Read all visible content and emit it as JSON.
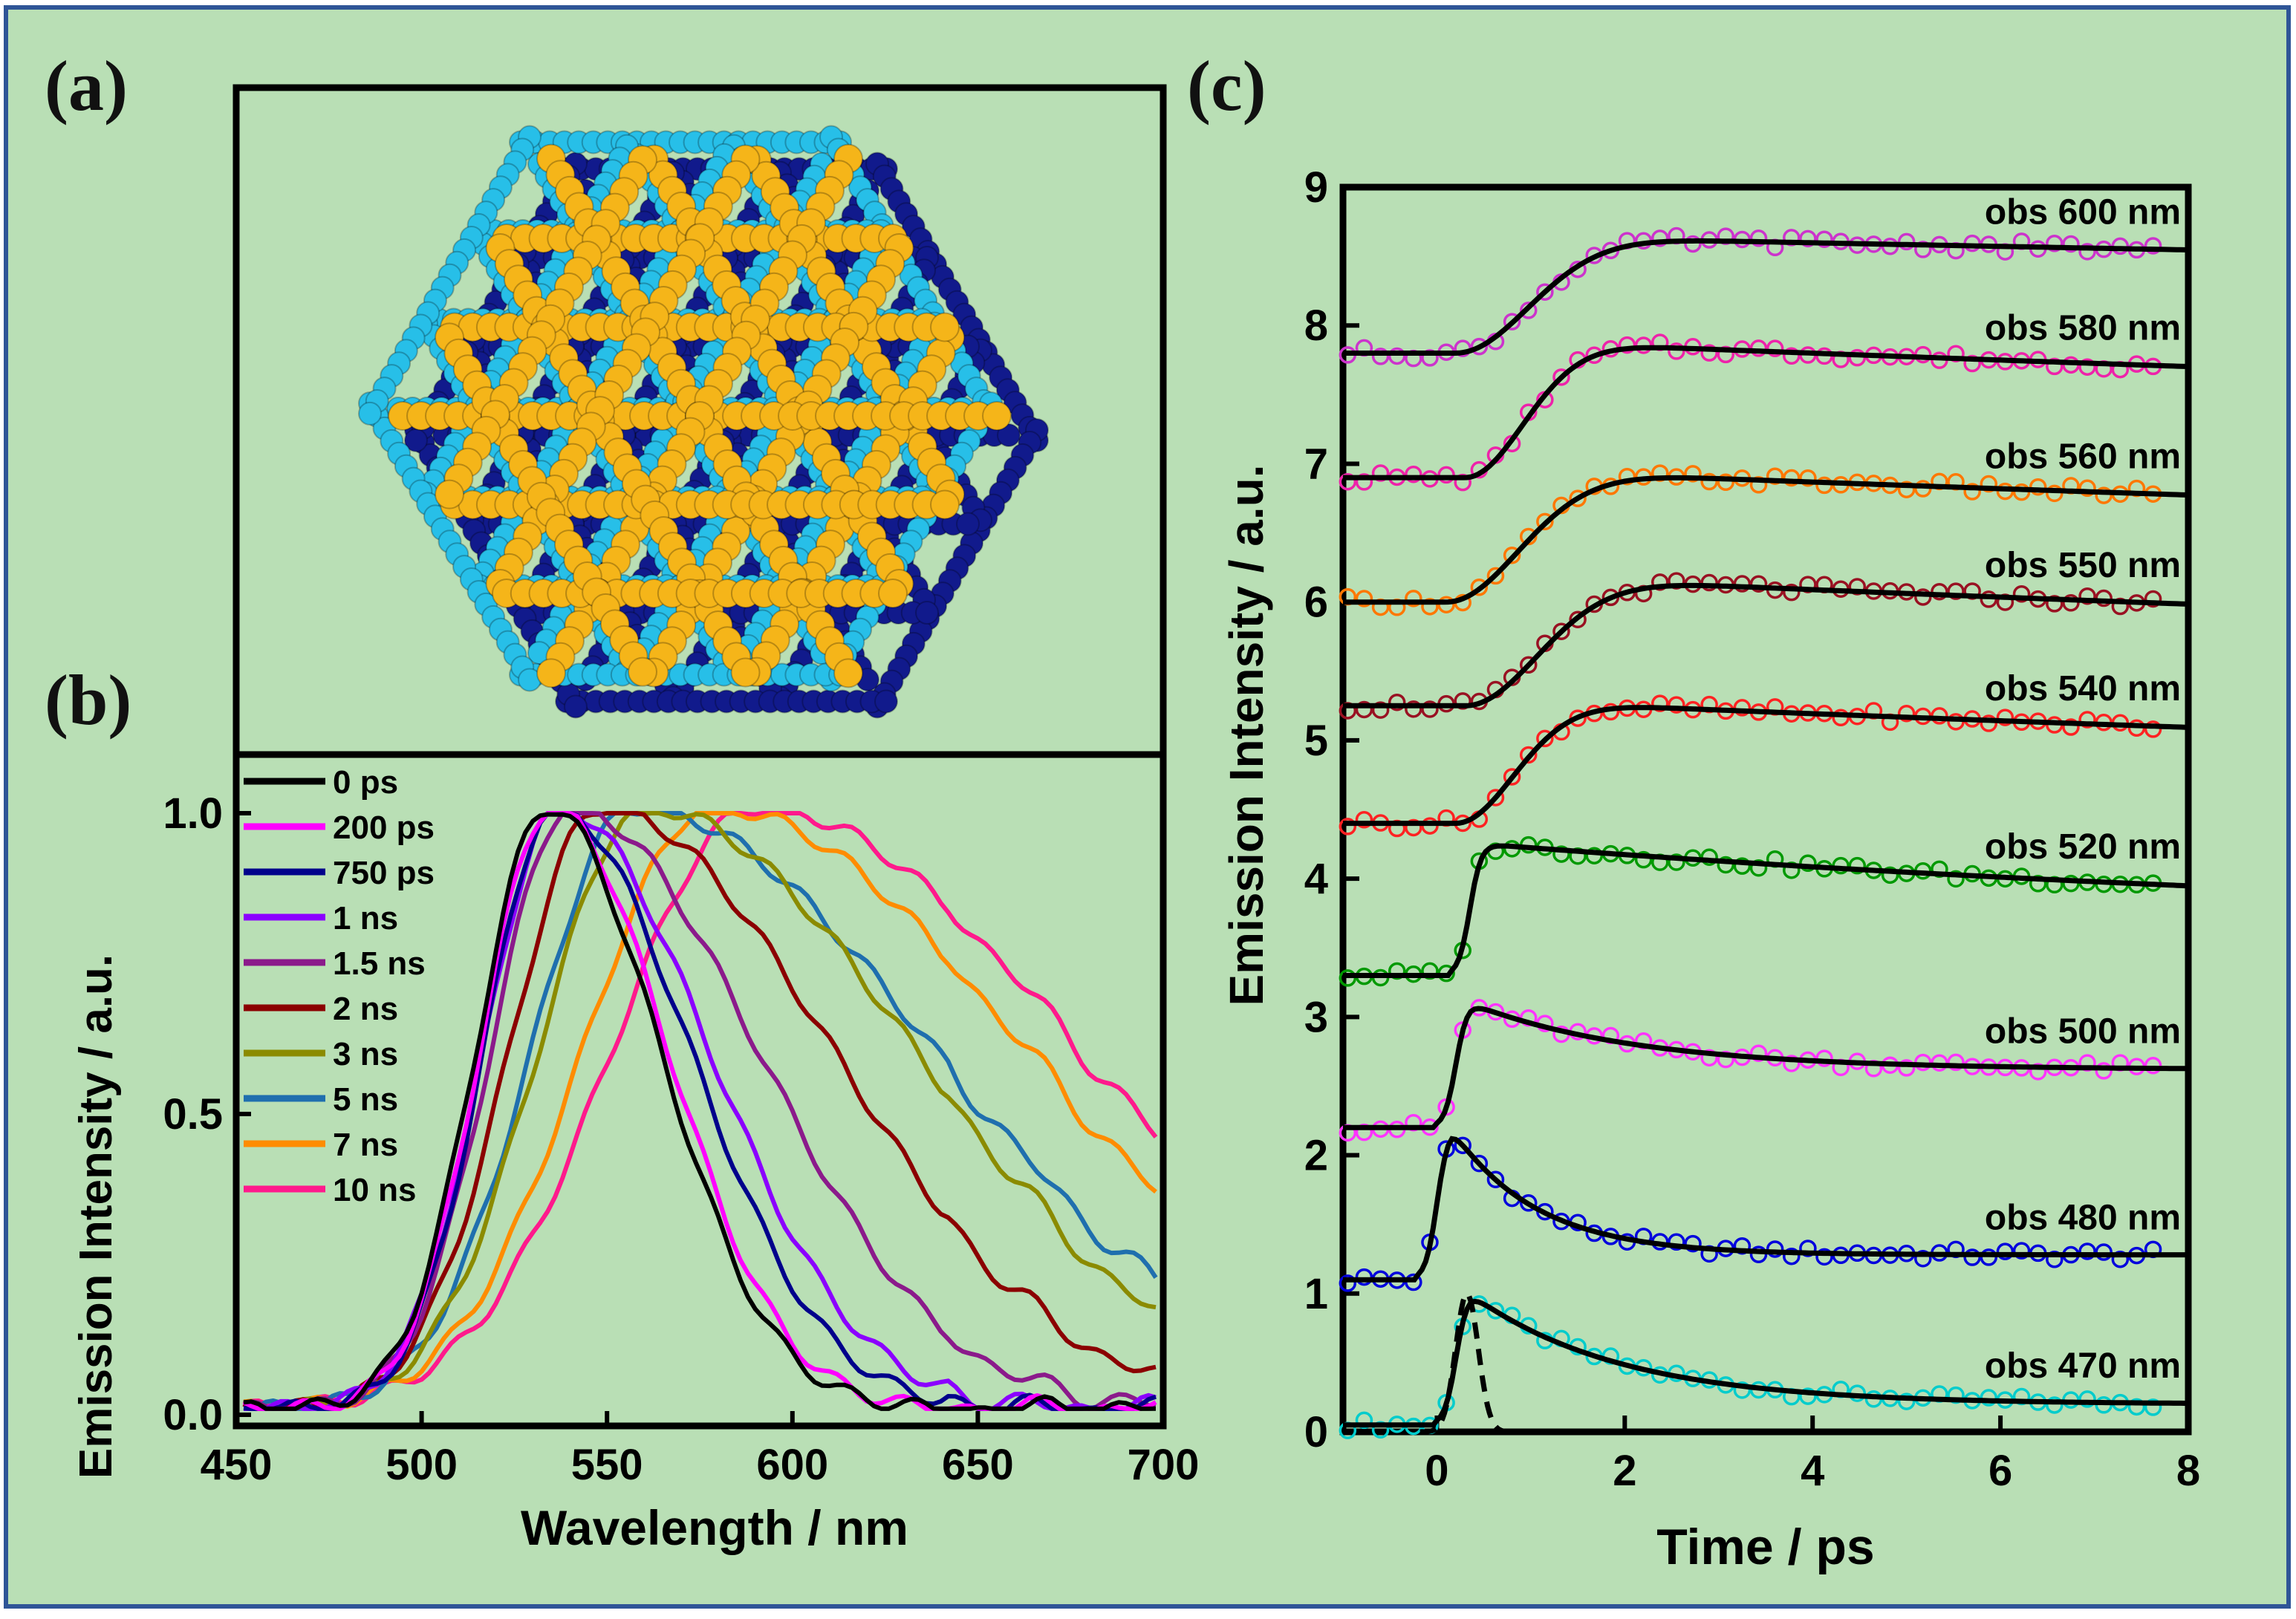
{
  "panels": {
    "a": {
      "letter": "(a)"
    },
    "b": {
      "letter": "(b)"
    },
    "c": {
      "letter": "(c)"
    }
  },
  "colors": {
    "background": "#b9dfb5",
    "frame": "#2f5597",
    "yellow": "#f5b519",
    "cyan": "#27bfe8",
    "navy": "#111a8c"
  },
  "chart_data": [
    {
      "type": "line",
      "id": "b",
      "xlabel": "Wavelength / nm",
      "ylabel": "Emission Intensity / a.u.",
      "xlim": [
        450,
        700
      ],
      "ylim": [
        -0.02,
        1.1
      ],
      "xticks": [
        450,
        500,
        550,
        600,
        650,
        700
      ],
      "yticks": [
        0.0,
        0.5,
        1.0
      ],
      "ytick_labels": [
        "0.0",
        "0.5",
        "1.0"
      ],
      "legend_position": "top-left",
      "series": [
        {
          "name": "0 ps",
          "color": "#000000",
          "peak": 534,
          "left_width": 19,
          "right_width": 30
        },
        {
          "name": "200 ps",
          "color": "#ff00ff",
          "peak": 535,
          "left_width": 19,
          "right_width": 31
        },
        {
          "name": "750 ps",
          "color": "#00008b",
          "peak": 536,
          "left_width": 19,
          "right_width": 36
        },
        {
          "name": "1 ns",
          "color": "#8b00ff",
          "peak": 537,
          "left_width": 20,
          "right_width": 40
        },
        {
          "name": "1.5 ns",
          "color": "#8b1a8b",
          "peak": 540,
          "left_width": 21,
          "right_width": 50
        },
        {
          "name": "2 ns",
          "color": "#8b0000",
          "peak": 548,
          "left_width": 24,
          "right_width": 62
        },
        {
          "name": "3 ns",
          "color": "#8b8b00",
          "peak": 560,
          "left_width": 28,
          "right_width": 72
        },
        {
          "name": "5 ns",
          "color": "#1f6fae",
          "peak": 557,
          "left_width": 27,
          "right_width": 80
        },
        {
          "name": "7 ns",
          "color": "#ff8c00",
          "peak": 578,
          "left_width": 34,
          "right_width": 84
        },
        {
          "name": "10 ns",
          "color": "#ff1a8c",
          "peak": 590,
          "left_width": 38,
          "right_width": 86
        }
      ]
    },
    {
      "type": "scatter",
      "id": "c",
      "xlabel": "Time / ps",
      "ylabel": "Emission Intensity / a.u.",
      "xlim": [
        -1,
        8
      ],
      "ylim": [
        0,
        9
      ],
      "xticks": [
        0,
        2,
        4,
        6,
        8
      ],
      "yticks": [
        0,
        1,
        2,
        3,
        4,
        5,
        6,
        7,
        8,
        9
      ],
      "series": [
        {
          "name": "obs 470 nm",
          "color": "#00cccc",
          "baseline": 0.05,
          "kind": "decay",
          "peak_t": 0.35,
          "amp": 0.95,
          "tau": 1.6,
          "plateau": 0.2
        },
        {
          "name": "obs 480 nm",
          "color": "#0000dd",
          "baseline": 1.1,
          "kind": "decay",
          "peak_t": 0.15,
          "amp": 1.1,
          "tau": 0.9,
          "plateau": 1.28
        },
        {
          "name": "obs 500 nm",
          "color": "#ff33ff",
          "baseline": 2.2,
          "kind": "decay",
          "peak_t": 0.35,
          "amp": 0.9,
          "tau": 1.8,
          "plateau": 2.62
        },
        {
          "name": "obs 520 nm",
          "color": "#009900",
          "baseline": 3.3,
          "kind": "decay",
          "peak_t": 0.5,
          "amp": 0.95,
          "tau": 12,
          "plateau": 3.6
        },
        {
          "name": "obs 540 nm",
          "color": "#ff2222",
          "baseline": 4.4,
          "kind": "rise",
          "t0": 0.2,
          "amp": 0.9,
          "rise": 0.8,
          "decay": 30
        },
        {
          "name": "obs 550 nm",
          "color": "#991122",
          "baseline": 5.25,
          "kind": "rise",
          "t0": 0.3,
          "amp": 0.95,
          "rise": 1.0,
          "decay": 30
        },
        {
          "name": "obs 560 nm",
          "color": "#ff7700",
          "baseline": 6.0,
          "kind": "rise",
          "t0": 0.1,
          "amp": 0.97,
          "rise": 1.0,
          "decay": 35
        },
        {
          "name": "obs 580 nm",
          "color": "#ee22aa",
          "baseline": 6.9,
          "kind": "rise",
          "t0": 0.3,
          "amp": 1.0,
          "rise": 0.8,
          "decay": 35
        },
        {
          "name": "obs 600 nm",
          "color": "#cc33cc",
          "baseline": 7.8,
          "kind": "rise",
          "t0": 0.2,
          "amp": 0.85,
          "rise": 1.0,
          "decay": 60
        }
      ],
      "irf": {
        "style": "dashed",
        "color": "#000000",
        "center": 0.32,
        "width": 0.12
      }
    }
  ]
}
